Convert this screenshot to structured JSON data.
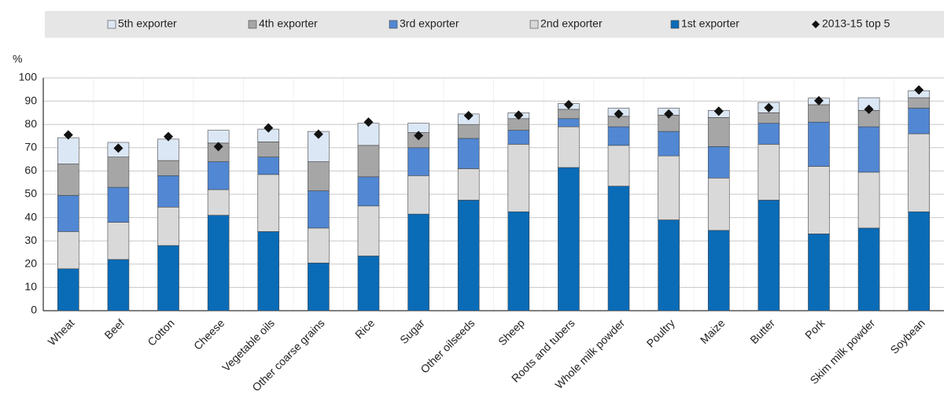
{
  "chart_data": {
    "type": "bar",
    "stacked": true,
    "y_label": "%",
    "categories": [
      "Wheat",
      "Beef",
      "Cotton",
      "Cheese",
      "Vegetable oils",
      "Other coarse grains",
      "Rice",
      "Sugar",
      "Other oilseeds",
      "Sheep",
      "Roots and tubers",
      "Whole milk powder",
      "Poultry",
      "Maize",
      "Butter",
      "Pork",
      "Skim milk powder",
      "Soybean"
    ],
    "series": [
      {
        "name": "5th exporter",
        "color": "#dce7f5",
        "values": [
          11.3,
          6.3,
          9.2,
          5.5,
          5.5,
          13,
          9.5,
          4,
          4.5,
          2.5,
          2.5,
          3.5,
          3,
          3,
          4.5,
          2.8,
          5.5,
          3
        ]
      },
      {
        "name": "4th exporter",
        "color": "#a6a6a6",
        "values": [
          13.5,
          13,
          6.5,
          8,
          6.5,
          12.5,
          13.5,
          6.5,
          6,
          5,
          4,
          4.5,
          7,
          12.5,
          4.5,
          7.5,
          7,
          4.5
        ]
      },
      {
        "name": "3rd exporter",
        "color": "#5187d3",
        "values": [
          15.5,
          15,
          13.5,
          12,
          7.5,
          16,
          12.5,
          12,
          13,
          6,
          3.5,
          8,
          10.5,
          13.5,
          9,
          19,
          19.5,
          11
        ]
      },
      {
        "name": "2nd exporter",
        "color": "#d9d9d9",
        "values": [
          16,
          16,
          16.5,
          11,
          24.5,
          15,
          21.5,
          16.5,
          13.5,
          29,
          17.5,
          17.5,
          27.5,
          22.5,
          24,
          29,
          24,
          33.5
        ]
      },
      {
        "name": "1st exporter",
        "color": "#0a6bb7",
        "values": [
          18,
          22,
          28,
          41,
          34,
          20.5,
          23.5,
          41.5,
          47.5,
          42.5,
          61.5,
          53.5,
          39,
          34.5,
          47.5,
          33,
          35.5,
          42.5
        ]
      },
      {
        "name": "2013-15 top 5",
        "type": "scatter",
        "marker": "diamond",
        "color": "#111111",
        "values": [
          75.5,
          69.8,
          74.8,
          70.5,
          78.5,
          75.8,
          81,
          75.2,
          83.8,
          84,
          88.5,
          84.5,
          84.5,
          85.7,
          87.2,
          90.2,
          86.5,
          94.8
        ]
      }
    ],
    "ylim": [
      0,
      100
    ],
    "yticks": [
      0,
      10,
      20,
      30,
      40,
      50,
      60,
      70,
      80,
      90,
      100
    ],
    "grid": true,
    "legend": "top"
  }
}
